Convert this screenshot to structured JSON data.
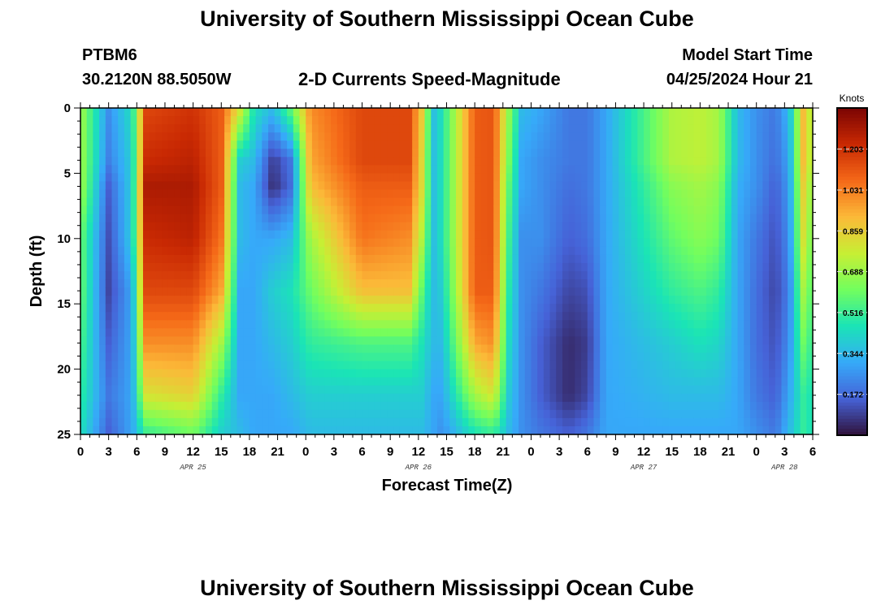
{
  "page": {
    "title_top": "University of Southern Mississippi Ocean Cube",
    "title_bottom": "University of Southern Mississippi Ocean Cube",
    "station_id": "PTBM6",
    "station_coords": "30.2120N  88.5050W",
    "plot_title": "2-D Currents Speed-Magnitude",
    "model_start_label": "Model Start Time",
    "model_start_value": "04/25/2024 Hour 21"
  },
  "chart_data": {
    "type": "heatmap",
    "title": "2-D Currents Speed-Magnitude",
    "xlabel": "Forecast Time(Z)",
    "ylabel": "Depth (ft)",
    "x_range_hours_from_apr25_00z": [
      0,
      78
    ],
    "ylim": [
      0,
      25
    ],
    "y_inverted": true,
    "x_tick_labels": [
      "0",
      "3",
      "6",
      "9",
      "12",
      "15",
      "18",
      "21",
      "0",
      "3",
      "6",
      "9",
      "12",
      "15",
      "18",
      "21",
      "0",
      "3",
      "6",
      "9",
      "12",
      "15",
      "18",
      "21",
      "0",
      "3",
      "6"
    ],
    "y_tick_labels": [
      "0",
      "5",
      "10",
      "15",
      "20",
      "25"
    ],
    "date_labels": [
      {
        "text": "APR 25",
        "x_hour": 12
      },
      {
        "text": "APR 26",
        "x_hour": 36
      },
      {
        "text": "APR 27",
        "x_hour": 60
      },
      {
        "text": "APR 28",
        "x_hour": 75
      }
    ],
    "colorbar": {
      "unit": "Knots",
      "tick_labels": [
        "1.203",
        "1.031",
        "0.859",
        "0.688",
        "0.516",
        "0.344",
        "0.172"
      ],
      "tick_values": [
        1.203,
        1.031,
        0.859,
        0.688,
        0.516,
        0.344,
        0.172
      ],
      "range": [
        0.0,
        1.376
      ],
      "colormap": [
        "#30123b",
        "#4662d7",
        "#36aaf9",
        "#1ae4b6",
        "#72fe5e",
        "#c7ef34",
        "#fbb938",
        "#f56918",
        "#c92903",
        "#7a0403"
      ]
    },
    "hours": [
      0,
      3,
      5.5,
      7,
      12,
      15,
      17,
      18.5,
      20.5,
      22.5,
      24.5,
      30,
      35,
      36.5,
      37.5,
      38.5,
      42,
      44,
      45.5,
      47,
      49,
      52,
      54,
      56,
      63,
      66,
      68,
      70,
      72,
      74,
      75.5,
      77,
      78
    ],
    "depths_ft": [
      0,
      4,
      6,
      10,
      14,
      18,
      22,
      25
    ],
    "speed_knots": [
      [
        0.7,
        0.7,
        0.7,
        0.6,
        0.6,
        0.55,
        0.5,
        0.45
      ],
      [
        0.25,
        0.22,
        0.15,
        0.12,
        0.1,
        0.15,
        0.2,
        0.15
      ],
      [
        0.45,
        0.4,
        0.4,
        0.4,
        0.3,
        0.3,
        0.3,
        0.3
      ],
      [
        1.15,
        1.22,
        1.28,
        1.22,
        1.15,
        1.0,
        0.8,
        0.5
      ],
      [
        1.2,
        1.25,
        1.28,
        1.25,
        1.15,
        1.0,
        0.85,
        0.6
      ],
      [
        1.1,
        1.1,
        1.1,
        1.05,
        0.95,
        0.7,
        0.5,
        0.4
      ],
      [
        0.8,
        0.4,
        0.35,
        0.35,
        0.3,
        0.3,
        0.3,
        0.35
      ],
      [
        0.45,
        0.35,
        0.3,
        0.3,
        0.3,
        0.3,
        0.3,
        0.3
      ],
      [
        0.35,
        0.08,
        0.05,
        0.3,
        0.4,
        0.35,
        0.3,
        0.3
      ],
      [
        0.6,
        0.2,
        0.18,
        0.35,
        0.45,
        0.4,
        0.35,
        0.3
      ],
      [
        1.0,
        0.95,
        0.9,
        0.7,
        0.6,
        0.5,
        0.4,
        0.35
      ],
      [
        1.15,
        1.15,
        1.1,
        1.05,
        0.9,
        0.55,
        0.4,
        0.35
      ],
      [
        1.15,
        1.15,
        1.1,
        1.0,
        0.9,
        0.55,
        0.4,
        0.35
      ],
      [
        0.85,
        0.8,
        0.8,
        0.7,
        0.55,
        0.45,
        0.4,
        0.35
      ],
      [
        0.35,
        0.35,
        0.35,
        0.35,
        0.35,
        0.35,
        0.3,
        0.3
      ],
      [
        0.45,
        0.45,
        0.45,
        0.45,
        0.4,
        0.35,
        0.3,
        0.25
      ],
      [
        1.1,
        1.1,
        1.1,
        1.1,
        1.1,
        0.95,
        0.7,
        0.45
      ],
      [
        1.12,
        1.12,
        1.12,
        1.12,
        1.1,
        1.0,
        0.8,
        0.5
      ],
      [
        0.7,
        0.65,
        0.6,
        0.55,
        0.5,
        0.45,
        0.4,
        0.35
      ],
      [
        0.35,
        0.3,
        0.3,
        0.25,
        0.25,
        0.25,
        0.25,
        0.25
      ],
      [
        0.3,
        0.25,
        0.25,
        0.25,
        0.2,
        0.15,
        0.15,
        0.2
      ],
      [
        0.2,
        0.2,
        0.18,
        0.15,
        0.1,
        0.05,
        0.05,
        0.15
      ],
      [
        0.2,
        0.2,
        0.2,
        0.18,
        0.12,
        0.08,
        0.1,
        0.2
      ],
      [
        0.3,
        0.3,
        0.3,
        0.3,
        0.3,
        0.3,
        0.3,
        0.3
      ],
      [
        0.72,
        0.72,
        0.65,
        0.58,
        0.5,
        0.4,
        0.35,
        0.3
      ],
      [
        0.75,
        0.75,
        0.7,
        0.65,
        0.55,
        0.45,
        0.35,
        0.3
      ],
      [
        0.7,
        0.7,
        0.65,
        0.6,
        0.5,
        0.42,
        0.35,
        0.3
      ],
      [
        0.35,
        0.35,
        0.32,
        0.3,
        0.3,
        0.3,
        0.3,
        0.3
      ],
      [
        0.25,
        0.25,
        0.25,
        0.2,
        0.18,
        0.18,
        0.2,
        0.25
      ],
      [
        0.2,
        0.18,
        0.15,
        0.12,
        0.1,
        0.12,
        0.15,
        0.2
      ],
      [
        0.35,
        0.3,
        0.28,
        0.25,
        0.22,
        0.25,
        0.3,
        0.35
      ],
      [
        0.9,
        0.9,
        0.85,
        0.8,
        0.7,
        0.6,
        0.5,
        0.5
      ],
      [
        0.7,
        0.7,
        0.65,
        0.6,
        0.55,
        0.5,
        0.45,
        0.45
      ]
    ]
  }
}
